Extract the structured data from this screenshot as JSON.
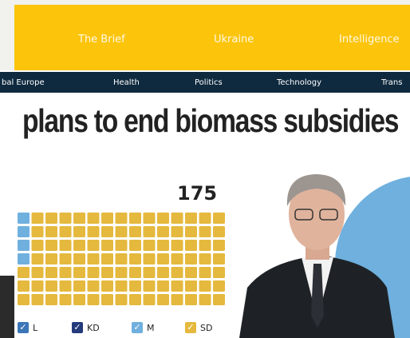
{
  "header": {
    "nav": [
      "The Brief",
      "Ukraine",
      "Intelligence"
    ]
  },
  "subnav": [
    "bal Europe",
    "Health",
    "Politics",
    "Technology",
    "Trans"
  ],
  "headline": "plans to end biomass subsidies",
  "chart": {
    "total": "175",
    "legend": [
      "L",
      "KD",
      "M",
      "SD"
    ]
  }
}
